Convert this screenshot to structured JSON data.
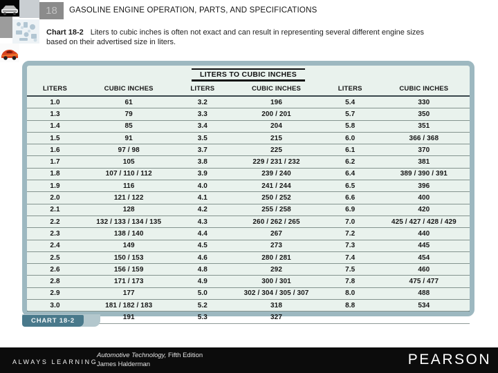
{
  "header": {
    "chapter_number": "18",
    "title": "GASOLINE ENGINE OPERATION, PARTS, AND SPECIFICATIONS"
  },
  "caption": {
    "label": "Chart 18-2",
    "text": "Liters to cubic inches is often not exact and can result in representing several different engine sizes based on their advertised size in liters."
  },
  "chart": {
    "title": "LITERS TO CUBIC INCHES",
    "badge": "CHART 18-2",
    "column_headers": [
      "LITERS",
      "CUBIC INCHES"
    ],
    "groups": [
      [
        [
          "1.0",
          "61"
        ],
        [
          "1.3",
          "79"
        ],
        [
          "1.4",
          "85"
        ],
        [
          "1.5",
          "91"
        ],
        [
          "1.6",
          "97 / 98"
        ],
        [
          "1.7",
          "105"
        ],
        [
          "1.8",
          "107 / 110 / 112"
        ],
        [
          "1.9",
          "116"
        ],
        [
          "2.0",
          "121 / 122"
        ],
        [
          "2.1",
          "128"
        ],
        [
          "2.2",
          "132 / 133 / 134 / 135"
        ],
        [
          "2.3",
          "138 / 140"
        ],
        [
          "2.4",
          "149"
        ],
        [
          "2.5",
          "150 / 153"
        ],
        [
          "2.6",
          "156 / 159"
        ],
        [
          "2.8",
          "171 / 173"
        ],
        [
          "2.9",
          "177"
        ],
        [
          "3.0",
          "181 / 182 / 183"
        ],
        [
          "3.1",
          "191"
        ]
      ],
      [
        [
          "3.2",
          "196"
        ],
        [
          "3.3",
          "200 / 201"
        ],
        [
          "3.4",
          "204"
        ],
        [
          "3.5",
          "215"
        ],
        [
          "3.7",
          "225"
        ],
        [
          "3.8",
          "229 / 231 / 232"
        ],
        [
          "3.9",
          "239 / 240"
        ],
        [
          "4.0",
          "241 / 244"
        ],
        [
          "4.1",
          "250 / 252"
        ],
        [
          "4.2",
          "255 / 258"
        ],
        [
          "4.3",
          "260 / 262 / 265"
        ],
        [
          "4.4",
          "267"
        ],
        [
          "4.5",
          "273"
        ],
        [
          "4.6",
          "280 / 281"
        ],
        [
          "4.8",
          "292"
        ],
        [
          "4.9",
          "300 / 301"
        ],
        [
          "5.0",
          "302 / 304 / 305 / 307"
        ],
        [
          "5.2",
          "318"
        ],
        [
          "5.3",
          "327"
        ]
      ],
      [
        [
          "5.4",
          "330"
        ],
        [
          "5.7",
          "350"
        ],
        [
          "5.8",
          "351"
        ],
        [
          "6.0",
          "366 / 368"
        ],
        [
          "6.1",
          "370"
        ],
        [
          "6.2",
          "381"
        ],
        [
          "6.4",
          "389 / 390 / 391"
        ],
        [
          "6.5",
          "396"
        ],
        [
          "6.6",
          "400"
        ],
        [
          "6.9",
          "420"
        ],
        [
          "7.0",
          "425 / 427 / 428 / 429"
        ],
        [
          "7.2",
          "440"
        ],
        [
          "7.3",
          "445"
        ],
        [
          "7.4",
          "454"
        ],
        [
          "7.5",
          "460"
        ],
        [
          "7.8",
          "475 / 477"
        ],
        [
          "8.0",
          "488"
        ],
        [
          "8.8",
          "534"
        ],
        [
          "",
          ""
        ]
      ]
    ]
  },
  "footer": {
    "always_learning": "ALWAYS LEARNING",
    "book_title": "Automotive Technology,",
    "book_edition": " Fifth Edition",
    "author": "James Halderman",
    "publisher": "PEARSON"
  },
  "colors": {
    "chart_frame": "#9db8c0",
    "chart_background": "#e9f2ed",
    "badge_teal": "#49798b",
    "badge_tab": "#b3c7cd",
    "footer_bar": "#0c0c0c"
  }
}
